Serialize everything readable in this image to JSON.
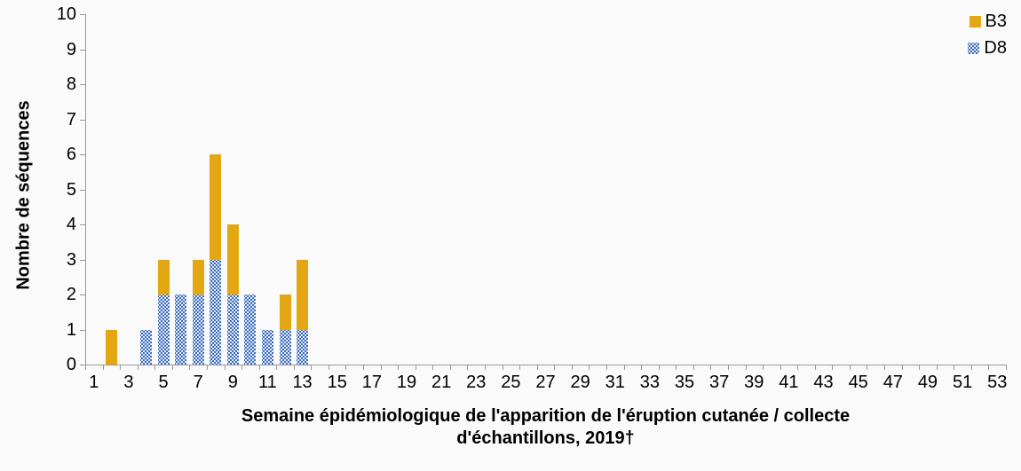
{
  "chart_data": {
    "type": "bar",
    "stacked": true,
    "title": "",
    "ylabel": "Nombre de séquences",
    "xlabel": "Semaine épidémiologique de l'apparition de l'éruption cutanée / collecte d'échantillons, 2019†",
    "xlabel_lines": [
      "Semaine épidémiologique de l'apparition de l'éruption cutanée / collecte",
      "d'échantillons, 2019†"
    ],
    "ylim": [
      0,
      10
    ],
    "y_ticks": [
      0,
      1,
      2,
      3,
      4,
      5,
      6,
      7,
      8,
      9,
      10
    ],
    "x_min": 1,
    "x_max": 53,
    "x_tick_labels": [
      1,
      3,
      5,
      7,
      9,
      11,
      13,
      15,
      17,
      19,
      21,
      23,
      25,
      27,
      29,
      31,
      33,
      35,
      37,
      39,
      41,
      43,
      45,
      47,
      49,
      51,
      53
    ],
    "grid": false,
    "legend_position": "top-right",
    "series": [
      {
        "name": "B3",
        "color": "#E3A713",
        "fill": "solid"
      },
      {
        "name": "D8",
        "color": "#3F6DBF",
        "fill": "white-dots"
      }
    ],
    "bars": [
      {
        "week": 2,
        "D8": 0,
        "B3": 1
      },
      {
        "week": 4,
        "D8": 1,
        "B3": 0
      },
      {
        "week": 5,
        "D8": 2,
        "B3": 1
      },
      {
        "week": 6,
        "D8": 2,
        "B3": 0
      },
      {
        "week": 7,
        "D8": 2,
        "B3": 1
      },
      {
        "week": 8,
        "D8": 3,
        "B3": 3
      },
      {
        "week": 9,
        "D8": 2,
        "B3": 2
      },
      {
        "week": 10,
        "D8": 2,
        "B3": 0
      },
      {
        "week": 11,
        "D8": 1,
        "B3": 0
      },
      {
        "week": 12,
        "D8": 1,
        "B3": 1
      },
      {
        "week": 13,
        "D8": 1,
        "B3": 2
      }
    ]
  },
  "colors": {
    "b3": "#E3A713",
    "d8": "#3F6DBF",
    "axis": "#999999",
    "background": "#FAFAFA",
    "text": "#000000"
  }
}
